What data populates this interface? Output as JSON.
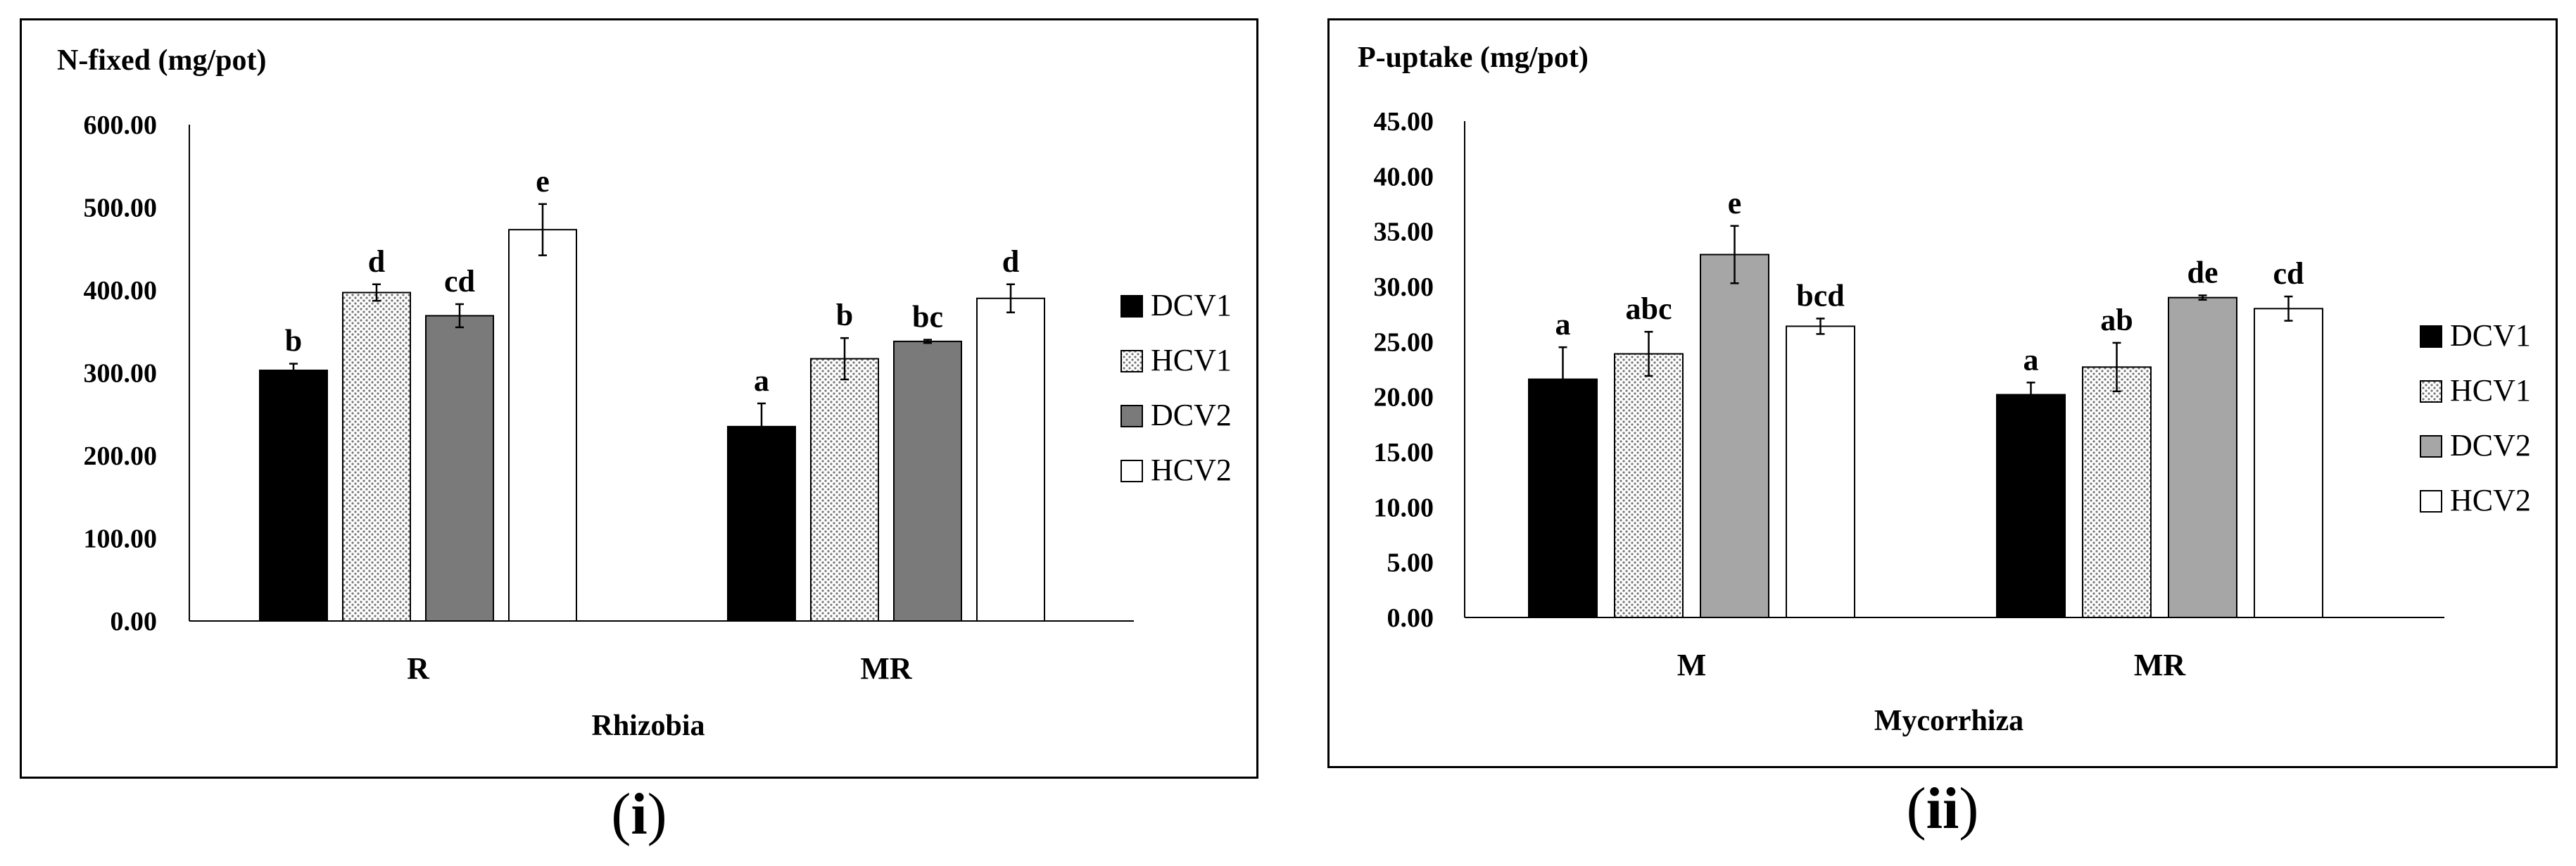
{
  "chart_data": [
    {
      "type": "bar",
      "title": "N-fixed (mg/pot)",
      "xlabel": "Rhizobia",
      "ylabel": "",
      "categories": [
        "R",
        "MR"
      ],
      "ylim": [
        0,
        600
      ],
      "yticks": [
        "0.00",
        "100.00",
        "200.00",
        "300.00",
        "400.00",
        "500.00",
        "600.00"
      ],
      "series": [
        {
          "name": "DCV1",
          "fill": "black",
          "values": [
            303,
            235
          ],
          "errors": [
            8,
            28
          ],
          "letters": [
            "b",
            "a"
          ]
        },
        {
          "name": "HCV1",
          "fill": "dots",
          "values": [
            397,
            317
          ],
          "errors": [
            10,
            25
          ],
          "letters": [
            "d",
            "b"
          ]
        },
        {
          "name": "DCV2",
          "fill": "gray",
          "values": [
            369,
            338
          ],
          "errors": [
            14,
            2
          ],
          "letters": [
            "cd",
            "bc"
          ]
        },
        {
          "name": "HCV2",
          "fill": "white",
          "values": [
            473,
            390
          ],
          "errors": [
            31,
            17
          ],
          "letters": [
            "e",
            "d"
          ]
        }
      ],
      "legend": "right",
      "grid": false
    },
    {
      "type": "bar",
      "title": "P-uptake (mg/pot)",
      "xlabel": "Mycorrhiza",
      "ylabel": "",
      "categories": [
        "M",
        "MR"
      ],
      "ylim": [
        0,
        45
      ],
      "yticks": [
        "0.00",
        "5.00",
        "10.00",
        "15.00",
        "20.00",
        "25.00",
        "30.00",
        "35.00",
        "40.00",
        "45.00"
      ],
      "series": [
        {
          "name": "DCV1",
          "fill": "black",
          "values": [
            21.6,
            20.2
          ],
          "errors": [
            2.9,
            1.1
          ],
          "letters": [
            "a",
            "a"
          ]
        },
        {
          "name": "HCV1",
          "fill": "dots",
          "values": [
            23.9,
            22.7
          ],
          "errors": [
            2.0,
            2.2
          ],
          "letters": [
            "abc",
            "ab"
          ]
        },
        {
          "name": "DCV2",
          "fill": "gray",
          "values": [
            32.9,
            29.0
          ],
          "errors": [
            2.6,
            0.2
          ],
          "letters": [
            "e",
            "de"
          ]
        },
        {
          "name": "HCV2",
          "fill": "white",
          "values": [
            26.4,
            28.0
          ],
          "errors": [
            0.7,
            1.1
          ],
          "letters": [
            "bcd",
            "cd"
          ]
        }
      ],
      "legend": "right",
      "grid": false
    }
  ],
  "panel_labels": [
    "i",
    "ii"
  ],
  "colors": {
    "black": "#000000",
    "gray_i": "#7a7a7a",
    "gray_ii": "#a6a6a6",
    "white": "#ffffff",
    "dots": "#8c8c8c"
  }
}
